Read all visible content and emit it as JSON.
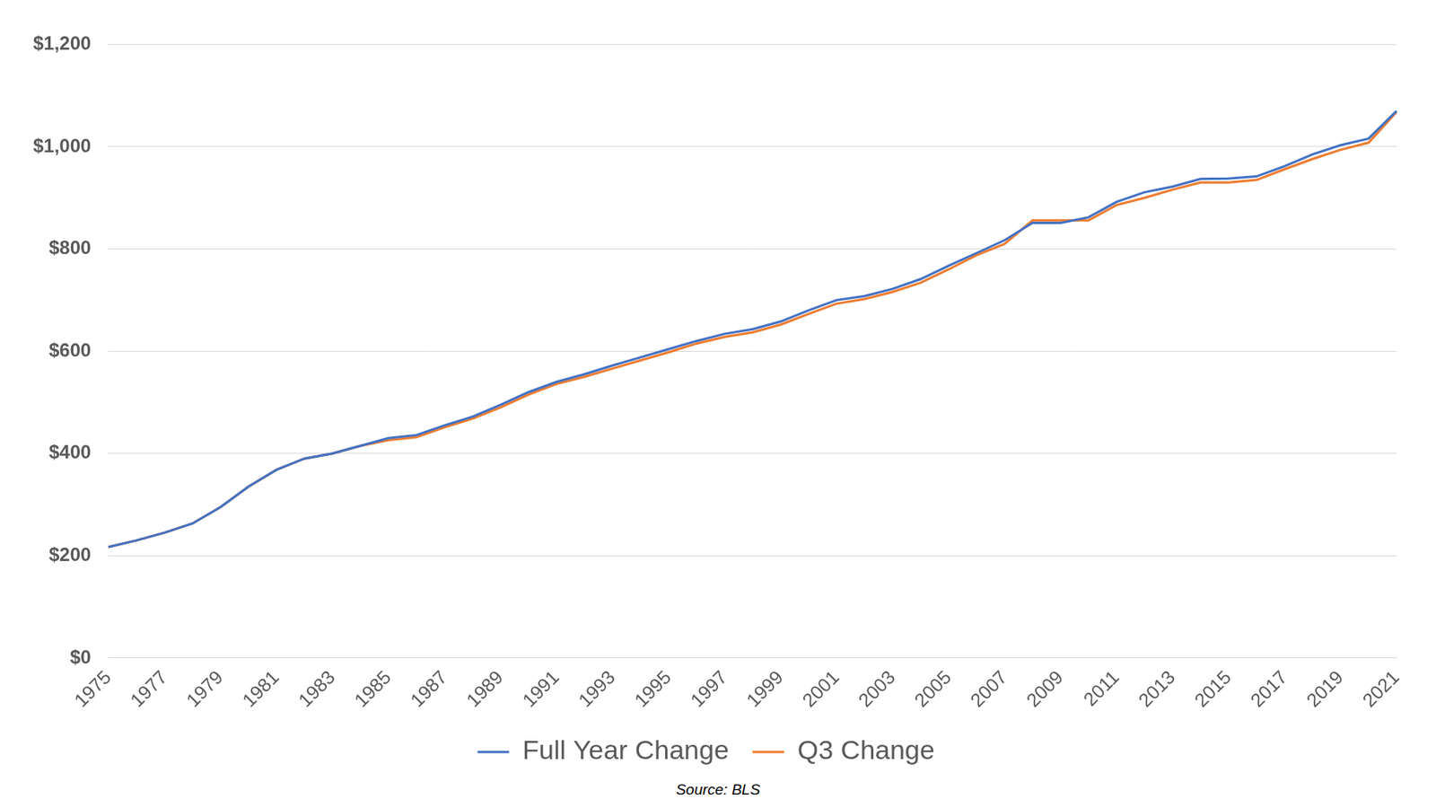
{
  "chart_data": {
    "type": "line",
    "categories": [
      "1975",
      null,
      "1977",
      null,
      "1979",
      null,
      "1981",
      null,
      "1983",
      null,
      "1985",
      null,
      "1987",
      null,
      "1989",
      null,
      "1991",
      null,
      "1993",
      null,
      "1995",
      null,
      "1997",
      null,
      "1999",
      null,
      "2001",
      null,
      "2003",
      null,
      "2005",
      null,
      "2007",
      null,
      "2009",
      null,
      "2011",
      null,
      "2013",
      null,
      "2015",
      null,
      "2017",
      null,
      "2019",
      null,
      "2021"
    ],
    "series": [
      {
        "name": "Full Year Change",
        "color": "#4472c4",
        "values": [
          217,
          230,
          245,
          263,
          295,
          335,
          368,
          390,
          400,
          415,
          430,
          436,
          455,
          472,
          495,
          520,
          540,
          555,
          572,
          588,
          604,
          620,
          634,
          643,
          658,
          680,
          700,
          708,
          722,
          741,
          767,
          792,
          817,
          851,
          851,
          862,
          892,
          911,
          922,
          937,
          938,
          942,
          962,
          985,
          1003,
          1016,
          1070
        ]
      },
      {
        "name": "Q3 Change",
        "color": "#ed7d31",
        "values": [
          217,
          230,
          245,
          263,
          295,
          335,
          368,
          390,
          400,
          415,
          426,
          432,
          451,
          468,
          490,
          515,
          536,
          550,
          566,
          582,
          598,
          615,
          628,
          637,
          652,
          673,
          693,
          702,
          716,
          734,
          760,
          788,
          810,
          856,
          856,
          856,
          886,
          900,
          916,
          930,
          930,
          935,
          956,
          976,
          994,
          1008,
          1068
        ]
      }
    ],
    "ylim": [
      0,
      1200
    ],
    "yticks": [
      {
        "value": 0,
        "label": "$0"
      },
      {
        "value": 200,
        "label": "$200"
      },
      {
        "value": 400,
        "label": "$400"
      },
      {
        "value": 600,
        "label": "$600"
      },
      {
        "value": 800,
        "label": "$800"
      },
      {
        "value": 1000,
        "label": "$1,000"
      },
      {
        "value": 1200,
        "label": "$1,200"
      }
    ],
    "grid": true,
    "legend": "bottom",
    "annotations": [
      "Source: BLS"
    ]
  }
}
